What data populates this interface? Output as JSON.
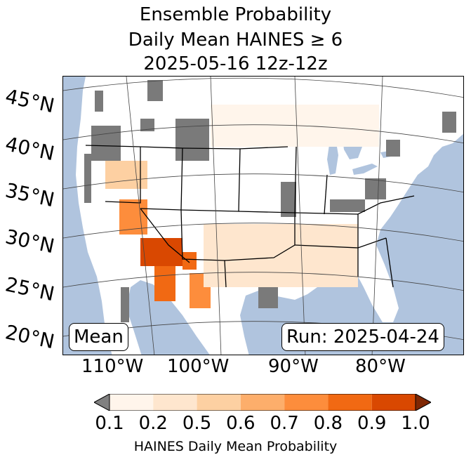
{
  "title": {
    "line1": "Ensemble Probability",
    "line2": "Daily Mean HAINES ≥ 6",
    "line3": "2025-05-16 12z-12z"
  },
  "map": {
    "latitude_labels": [
      "45°N",
      "40°N",
      "35°N",
      "30°N",
      "25°N",
      "20°N"
    ],
    "longitude_labels": [
      "110°W",
      "100°W",
      "90°W",
      "80°W"
    ],
    "colors": {
      "ocean": "#b0c4de",
      "land": "#ffffff",
      "missing": "#7a7a7a"
    }
  },
  "mean_label": "Mean",
  "run_label": "Run: 2025-04-24",
  "colorbar": {
    "label": "HAINES Daily Mean Probability",
    "ticks": [
      "0.1",
      "0.2",
      "0.5",
      "0.6",
      "0.7",
      "0.8",
      "0.9",
      "1.0"
    ],
    "under_color": "#808080",
    "over_color": "#7f2704",
    "bins": [
      {
        "from": 0.1,
        "to": 0.2,
        "color": "#fff5eb"
      },
      {
        "from": 0.2,
        "to": 0.5,
        "color": "#fee6ce"
      },
      {
        "from": 0.5,
        "to": 0.6,
        "color": "#fdd0a2"
      },
      {
        "from": 0.6,
        "to": 0.7,
        "color": "#fdae6b"
      },
      {
        "from": 0.7,
        "to": 0.8,
        "color": "#fd8d3c"
      },
      {
        "from": 0.8,
        "to": 0.9,
        "color": "#f16913"
      },
      {
        "from": 0.9,
        "to": 1.0,
        "color": "#d94801"
      }
    ]
  }
}
